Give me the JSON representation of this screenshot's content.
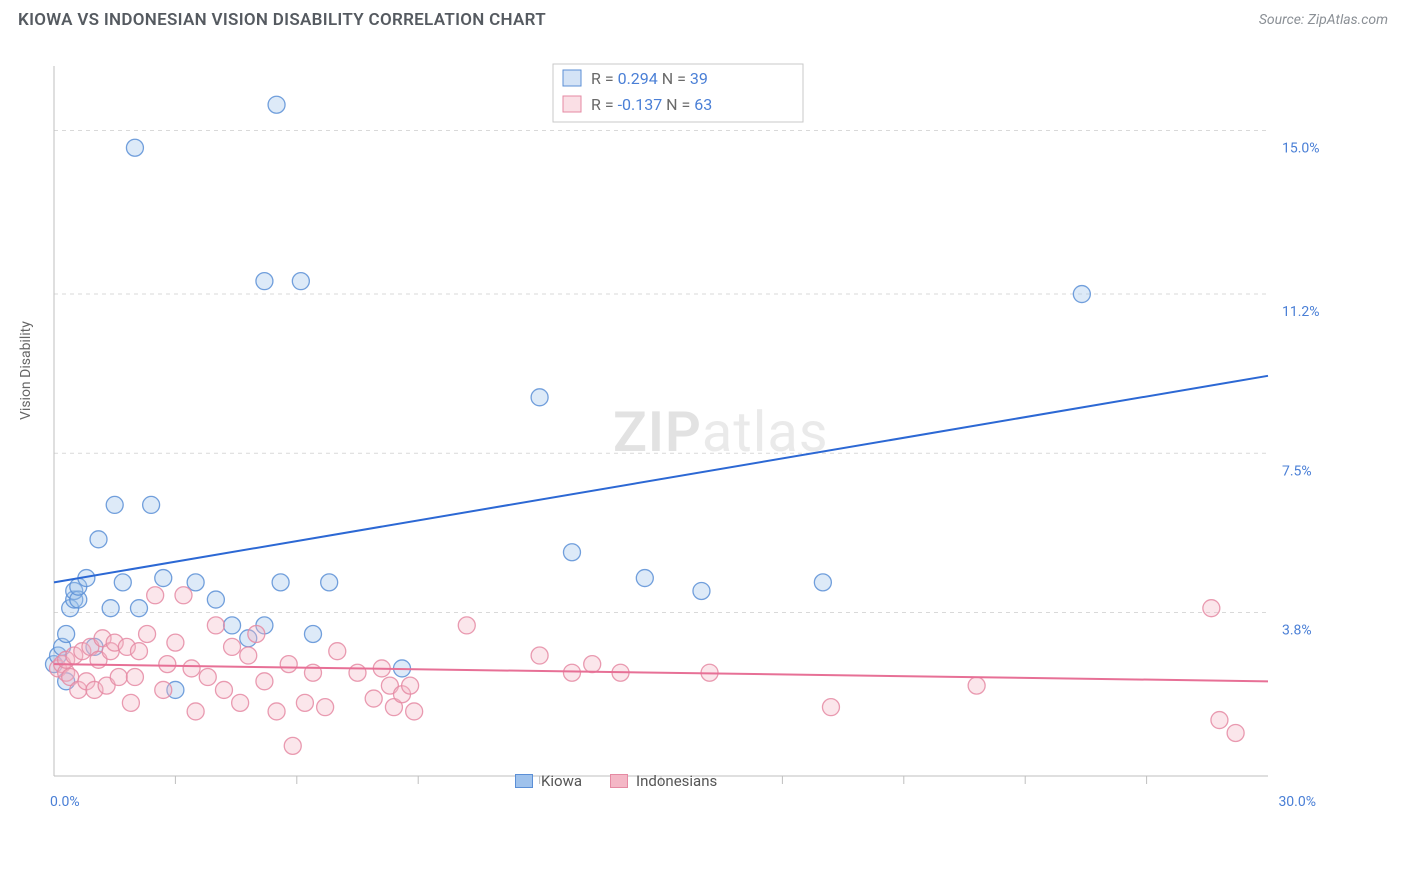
{
  "header": {
    "title": "KIOWA VS INDONESIAN VISION DISABILITY CORRELATION CHART",
    "source_label": "Source: ZipAtlas.com"
  },
  "watermark": {
    "bold": "ZIP",
    "thin": "atlas"
  },
  "y_axis_label": "Vision Disability",
  "chart": {
    "type": "scatter",
    "x_domain": [
      0,
      30
    ],
    "y_domain": [
      0,
      16.5
    ],
    "x_ticks_minor": [
      3,
      6,
      9,
      12,
      15,
      18,
      21,
      24,
      27
    ],
    "x_labels": [
      {
        "v": 0,
        "label": "0.0%"
      },
      {
        "v": 30,
        "label": "30.0%"
      }
    ],
    "y_gridlines": [
      3.8,
      7.5,
      11.2,
      15.0
    ],
    "y_labels": [
      {
        "v": 3.8,
        "label": "3.8%"
      },
      {
        "v": 7.5,
        "label": "7.5%"
      },
      {
        "v": 11.2,
        "label": "11.2%"
      },
      {
        "v": 15.0,
        "label": "15.0%"
      }
    ],
    "colors": {
      "background": "#ffffff",
      "grid": "#d9d9d9",
      "axis": "#bfbfbf",
      "blue_fill": "#9fc2ec",
      "blue_stroke": "#5b8fd6",
      "blue_line": "#2c68d4",
      "pink_fill": "#f4b7c6",
      "pink_stroke": "#e58aa3",
      "pink_line": "#e77096",
      "tick_text": "#4a7fd6",
      "stat_label": "#6a6a6a",
      "stat_value": "#4a7fd6"
    },
    "marker_radius": 8.5,
    "series": [
      {
        "name": "Kiowa",
        "color_key": "blue",
        "R": "0.294",
        "N": "39",
        "regression": {
          "x1": 0,
          "y1": 4.5,
          "x2": 30,
          "y2": 9.3
        },
        "points": [
          [
            0.0,
            2.6
          ],
          [
            0.1,
            2.8
          ],
          [
            0.2,
            3.0
          ],
          [
            0.3,
            3.3
          ],
          [
            0.3,
            2.2
          ],
          [
            0.4,
            3.9
          ],
          [
            0.5,
            4.1
          ],
          [
            0.5,
            4.3
          ],
          [
            0.6,
            4.1
          ],
          [
            0.6,
            4.4
          ],
          [
            0.8,
            4.6
          ],
          [
            1.0,
            3.0
          ],
          [
            1.1,
            5.5
          ],
          [
            1.4,
            3.9
          ],
          [
            1.5,
            6.3
          ],
          [
            1.7,
            4.5
          ],
          [
            2.0,
            14.6
          ],
          [
            2.1,
            3.9
          ],
          [
            2.4,
            6.3
          ],
          [
            2.7,
            4.6
          ],
          [
            3.0,
            2.0
          ],
          [
            3.5,
            4.5
          ],
          [
            4.0,
            4.1
          ],
          [
            4.4,
            3.5
          ],
          [
            4.8,
            3.2
          ],
          [
            5.2,
            11.5
          ],
          [
            5.2,
            3.5
          ],
          [
            5.5,
            15.6
          ],
          [
            5.6,
            4.5
          ],
          [
            6.1,
            11.5
          ],
          [
            6.4,
            3.3
          ],
          [
            6.8,
            4.5
          ],
          [
            8.6,
            2.5
          ],
          [
            12.0,
            8.8
          ],
          [
            12.8,
            5.2
          ],
          [
            14.6,
            4.6
          ],
          [
            16.0,
            4.3
          ],
          [
            19.0,
            4.5
          ],
          [
            25.4,
            11.2
          ]
        ]
      },
      {
        "name": "Indonesians",
        "color_key": "pink",
        "R": "-0.137",
        "N": "63",
        "regression": {
          "x1": 0,
          "y1": 2.6,
          "x2": 30,
          "y2": 2.2
        },
        "points": [
          [
            0.1,
            2.5
          ],
          [
            0.2,
            2.6
          ],
          [
            0.3,
            2.4
          ],
          [
            0.3,
            2.7
          ],
          [
            0.4,
            2.3
          ],
          [
            0.5,
            2.8
          ],
          [
            0.6,
            2.0
          ],
          [
            0.7,
            2.9
          ],
          [
            0.8,
            2.2
          ],
          [
            0.9,
            3.0
          ],
          [
            1.0,
            2.0
          ],
          [
            1.1,
            2.7
          ],
          [
            1.2,
            3.2
          ],
          [
            1.3,
            2.1
          ],
          [
            1.4,
            2.9
          ],
          [
            1.5,
            3.1
          ],
          [
            1.6,
            2.3
          ],
          [
            1.8,
            3.0
          ],
          [
            1.9,
            1.7
          ],
          [
            2.0,
            2.3
          ],
          [
            2.1,
            2.9
          ],
          [
            2.3,
            3.3
          ],
          [
            2.5,
            4.2
          ],
          [
            2.7,
            2.0
          ],
          [
            2.8,
            2.6
          ],
          [
            3.0,
            3.1
          ],
          [
            3.2,
            4.2
          ],
          [
            3.4,
            2.5
          ],
          [
            3.5,
            1.5
          ],
          [
            3.8,
            2.3
          ],
          [
            4.0,
            3.5
          ],
          [
            4.2,
            2.0
          ],
          [
            4.4,
            3.0
          ],
          [
            4.6,
            1.7
          ],
          [
            4.8,
            2.8
          ],
          [
            5.0,
            3.3
          ],
          [
            5.2,
            2.2
          ],
          [
            5.5,
            1.5
          ],
          [
            5.8,
            2.6
          ],
          [
            5.9,
            0.7
          ],
          [
            6.2,
            1.7
          ],
          [
            6.4,
            2.4
          ],
          [
            6.7,
            1.6
          ],
          [
            7.0,
            2.9
          ],
          [
            7.5,
            2.4
          ],
          [
            7.9,
            1.8
          ],
          [
            8.1,
            2.5
          ],
          [
            8.3,
            2.1
          ],
          [
            8.4,
            1.6
          ],
          [
            8.6,
            1.9
          ],
          [
            8.8,
            2.1
          ],
          [
            8.9,
            1.5
          ],
          [
            10.2,
            3.5
          ],
          [
            12.0,
            2.8
          ],
          [
            12.8,
            2.4
          ],
          [
            13.3,
            2.6
          ],
          [
            14.0,
            2.4
          ],
          [
            16.2,
            2.4
          ],
          [
            19.2,
            1.6
          ],
          [
            22.8,
            2.1
          ],
          [
            28.6,
            3.9
          ],
          [
            28.8,
            1.3
          ],
          [
            29.2,
            1.0
          ]
        ]
      }
    ],
    "legend_bottom": [
      {
        "label": "Kiowa",
        "fill": "#9fc2ec",
        "stroke": "#5b8fd6"
      },
      {
        "label": "Indonesians",
        "fill": "#f4b7c6",
        "stroke": "#e58aa3"
      }
    ],
    "legend_stat_labels": {
      "R": "R =",
      "N": "N ="
    }
  }
}
